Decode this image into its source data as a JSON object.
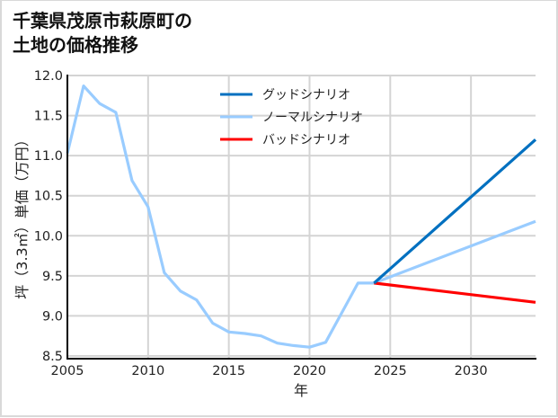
{
  "title": "千葉県茂原市萩原町の\n土地の価格推移",
  "colors": {
    "good": "#0070c0",
    "normal": "#99ccff",
    "bad": "#ff0000",
    "grid": "#d4d4d4",
    "axis": "#000000"
  },
  "chart_data": {
    "type": "line",
    "title": "千葉県茂原市萩原町の土地の価格推移",
    "xlabel": "年",
    "ylabel": "坪（3.3㎡）単価（万円）",
    "xlim": [
      2005,
      2034
    ],
    "ylim": [
      8.45,
      12.0
    ],
    "xticks": [
      2005,
      2010,
      2015,
      2020,
      2025,
      2030
    ],
    "yticks": [
      8.5,
      9.0,
      9.5,
      10.0,
      10.5,
      11.0,
      11.5,
      12.0
    ],
    "ytick_labels": [
      "8.5",
      "9.0",
      "9.5",
      "10.0",
      "10.5",
      "11.0",
      "11.5",
      "12.0"
    ],
    "grid": true,
    "legend_position": "upper center",
    "series": [
      {
        "name": "グッドシナリオ",
        "key": "good",
        "x": [
          2024,
          2034
        ],
        "values": [
          9.41,
          11.2
        ]
      },
      {
        "name": "ノーマルシナリオ",
        "key": "normal",
        "x": [
          2005,
          2006,
          2007,
          2008,
          2009,
          2010,
          2011,
          2012,
          2013,
          2014,
          2015,
          2016,
          2017,
          2018,
          2019,
          2020,
          2021,
          2022,
          2023,
          2024,
          2034
        ],
        "values": [
          11.03,
          11.87,
          11.65,
          11.54,
          10.69,
          10.36,
          9.54,
          9.31,
          9.2,
          8.91,
          8.8,
          8.78,
          8.75,
          8.66,
          8.63,
          8.61,
          8.67,
          9.04,
          9.41,
          9.41,
          10.18
        ]
      },
      {
        "name": "バッドシナリオ",
        "key": "bad",
        "x": [
          2024,
          2034
        ],
        "values": [
          9.41,
          9.17
        ]
      }
    ]
  }
}
